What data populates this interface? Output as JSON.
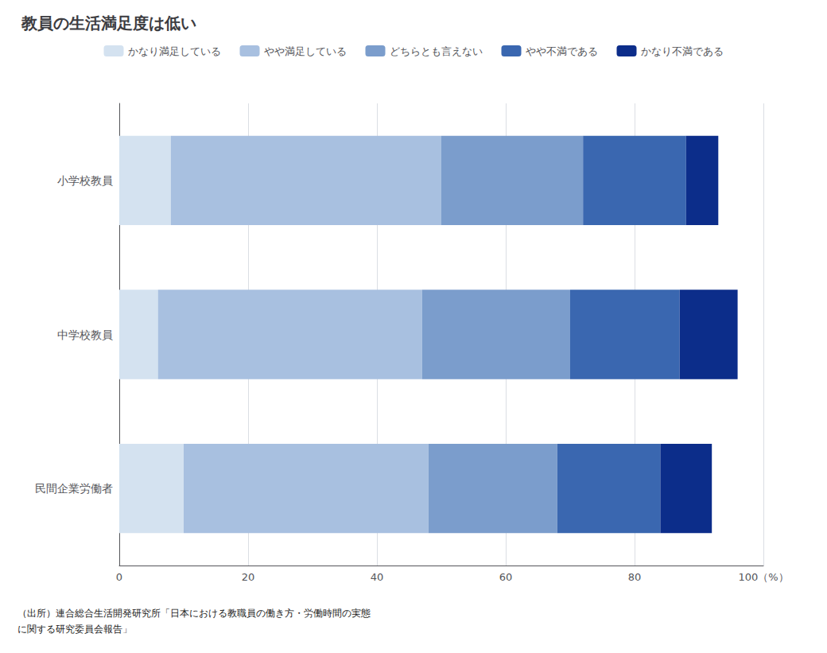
{
  "chart_data": {
    "type": "bar",
    "orientation": "horizontal",
    "stacked": true,
    "title": "教員の生活満足度は低い",
    "categories": [
      "小学校教員",
      "中学校教員",
      "民間企業労働者"
    ],
    "series": [
      {
        "name": "かなり満足している",
        "color": "#d4e2f0",
        "values": [
          8.0,
          6.0,
          10.0
        ]
      },
      {
        "name": "やや満足している",
        "color": "#a8c0e0",
        "values": [
          42.0,
          41.0,
          38.0
        ]
      },
      {
        "name": "どちらとも言えない",
        "color": "#7b9dcc",
        "values": [
          22.0,
          23.0,
          20.0
        ]
      },
      {
        "name": "やや不満である",
        "color": "#3a67b0",
        "values": [
          16.0,
          17.0,
          16.0
        ]
      },
      {
        "name": "かなり不満である",
        "color": "#0c2d8a",
        "values": [
          5.0,
          9.0,
          8.0
        ]
      }
    ],
    "xlim": [
      0,
      100
    ],
    "xticks": [
      0,
      20,
      40,
      60,
      80,
      {
        "value": 100,
        "label": "100（%）"
      }
    ],
    "grid": true,
    "legend": "top",
    "annotations": [
      "（出所）連合総合生活開発研究所「日本における教職員の働き方・労働時間の実態\nに関する研究委員会報告」"
    ]
  }
}
